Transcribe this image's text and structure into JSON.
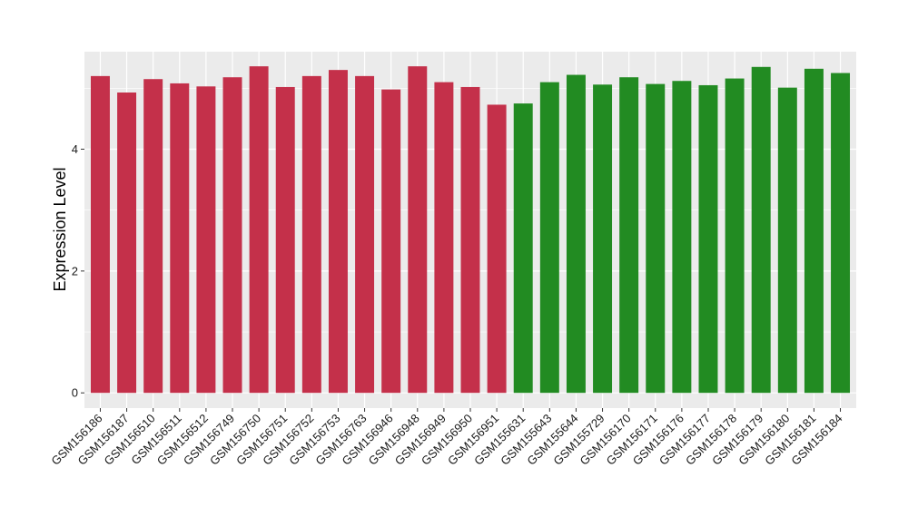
{
  "chart_data": {
    "type": "bar",
    "title": "",
    "xlabel": "",
    "ylabel": "Expression Level",
    "ylim": [
      -0.25,
      5.6
    ],
    "yticks": [
      0,
      2,
      4
    ],
    "grid": true,
    "legend": "none",
    "colors": {
      "group_a": "#c4304a",
      "group_b": "#228b22",
      "panel": "#ebebeb",
      "grid": "#ffffff"
    },
    "categories": [
      "GSM156186",
      "GSM156187",
      "GSM156510",
      "GSM156511",
      "GSM156512",
      "GSM156749",
      "GSM156750",
      "GSM156751",
      "GSM156752",
      "GSM156753",
      "GSM156763",
      "GSM156946",
      "GSM156948",
      "GSM156949",
      "GSM156950",
      "GSM156951",
      "GSM155631",
      "GSM155643",
      "GSM155644",
      "GSM155729",
      "GSM156170",
      "GSM156171",
      "GSM156176",
      "GSM156177",
      "GSM156178",
      "GSM156179",
      "GSM156180",
      "GSM156181",
      "GSM156184"
    ],
    "values": [
      5.2,
      4.93,
      5.15,
      5.08,
      5.03,
      5.18,
      5.36,
      5.02,
      5.2,
      5.3,
      5.2,
      4.98,
      5.36,
      5.1,
      5.02,
      4.73,
      4.75,
      5.1,
      5.22,
      5.06,
      5.18,
      5.07,
      5.12,
      5.05,
      5.16,
      5.35,
      5.01,
      5.32,
      5.25
    ],
    "groups": [
      "a",
      "a",
      "a",
      "a",
      "a",
      "a",
      "a",
      "a",
      "a",
      "a",
      "a",
      "a",
      "a",
      "a",
      "a",
      "a",
      "b",
      "b",
      "b",
      "b",
      "b",
      "b",
      "b",
      "b",
      "b",
      "b",
      "b",
      "b",
      "b"
    ]
  }
}
